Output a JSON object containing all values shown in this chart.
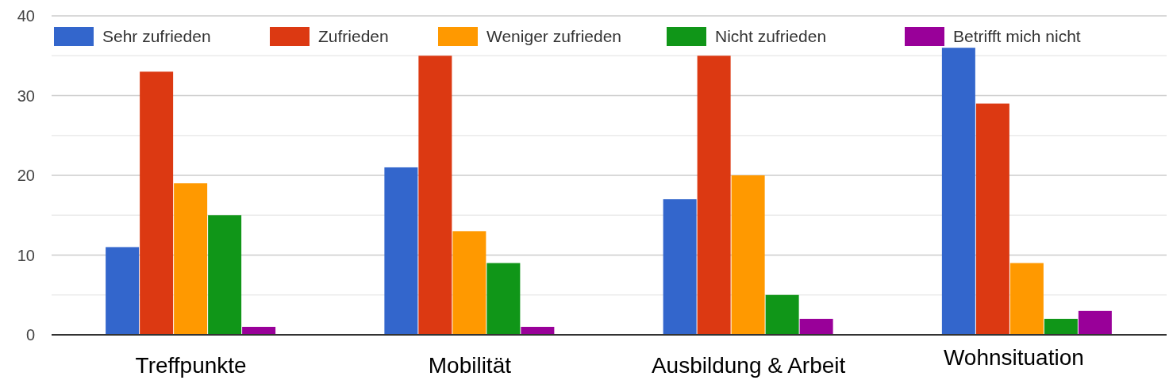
{
  "chart_data": {
    "type": "bar",
    "categories": [
      "Treffpunkte",
      "Mobilität",
      "Ausbildung & Arbeit",
      "Wohnsituation"
    ],
    "series": [
      {
        "name": "Sehr zufrieden",
        "color": "#3366cc",
        "values": [
          11,
          21,
          17,
          36
        ]
      },
      {
        "name": "Zufrieden",
        "color": "#dc3912",
        "values": [
          33,
          35,
          35,
          29
        ]
      },
      {
        "name": "Weniger zufrieden",
        "color": "#ff9900",
        "values": [
          19,
          13,
          20,
          9
        ]
      },
      {
        "name": "Nicht zufrieden",
        "color": "#109618",
        "values": [
          15,
          9,
          5,
          2
        ]
      },
      {
        "name": "Betrifft mich nicht",
        "color": "#990099",
        "values": [
          1,
          1,
          2,
          3
        ]
      }
    ],
    "ylim": [
      0,
      40
    ],
    "yticks": [
      0,
      {
        "value": 5,
        "label": null
      },
      10,
      {
        "value": 15,
        "label": null
      },
      20,
      {
        "value": 25,
        "label": null
      },
      30,
      {
        "value": 35,
        "label": null
      },
      40
    ],
    "grid": true,
    "legend": "top"
  }
}
